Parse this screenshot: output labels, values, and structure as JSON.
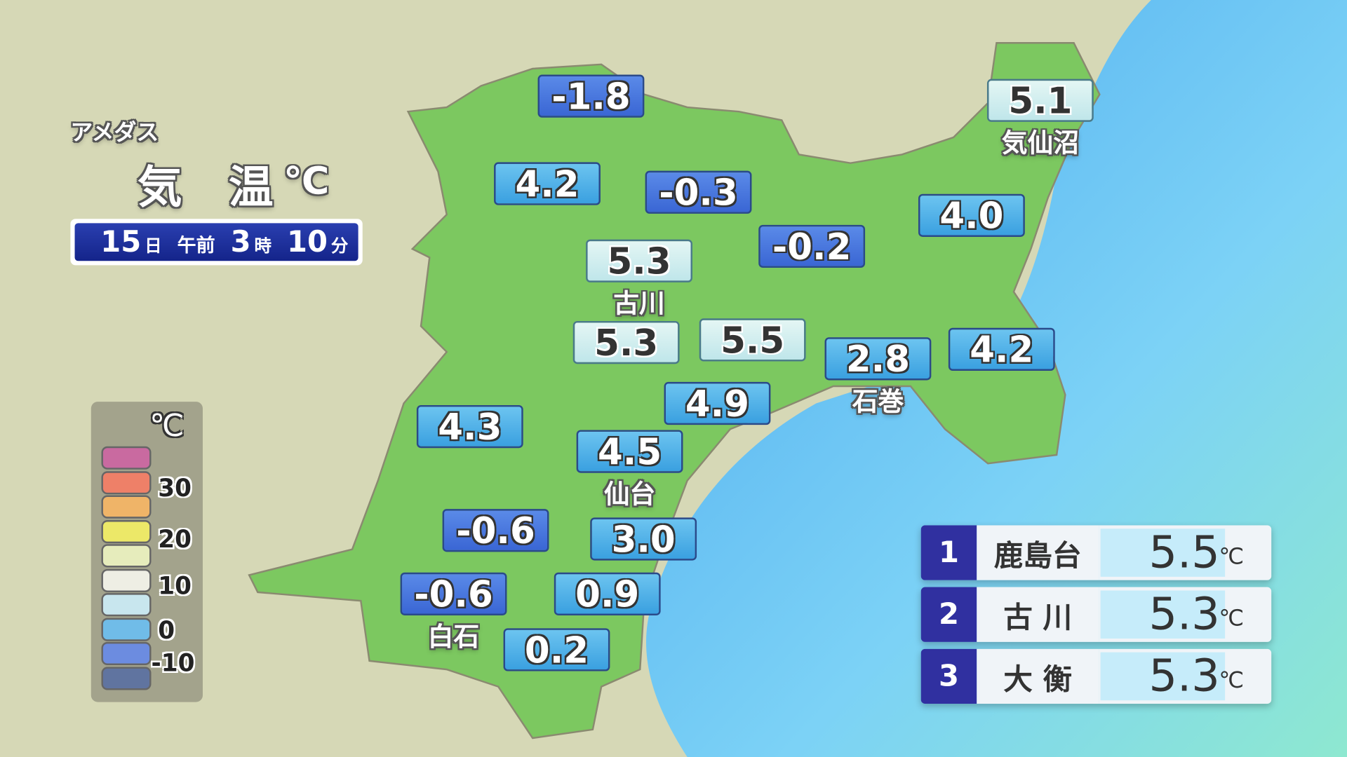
{
  "header": {
    "source": "アメダス",
    "title": "気 温",
    "unit": "℃"
  },
  "time": {
    "day": "15",
    "day_unit": "日",
    "ampm": "午前",
    "hour": "3",
    "hour_unit": "時",
    "minute": "10",
    "minute_unit": "分"
  },
  "legend": {
    "unit": "℃",
    "ticks": [
      "30",
      "20",
      "10",
      "0",
      "-10"
    ],
    "colors": [
      "#c96aa0",
      "#ee8068",
      "#efb468",
      "#ece868",
      "#e6ecbc",
      "#eeeee4",
      "#c8e6ee",
      "#70bce8",
      "#6c8ce0",
      "#6074a0"
    ]
  },
  "colors": {
    "land": "#7cc860",
    "sea": "#7ccff5",
    "neg": "#3f6fd8",
    "mid": "#4aaee6",
    "hi": "#cdeef0",
    "rank": "#3030a0"
  },
  "stations": [
    {
      "value": "-1.8",
      "name": ""
    },
    {
      "value": "5.1",
      "name": "気仙沼"
    },
    {
      "value": "4.2",
      "name": ""
    },
    {
      "value": "-0.3",
      "name": ""
    },
    {
      "value": "4.0",
      "name": ""
    },
    {
      "value": "-0.2",
      "name": ""
    },
    {
      "value": "5.3",
      "name": "古川"
    },
    {
      "value": "5.3",
      "name": ""
    },
    {
      "value": "5.5",
      "name": ""
    },
    {
      "value": "2.8",
      "name": "石巻"
    },
    {
      "value": "4.2",
      "name": ""
    },
    {
      "value": "4.9",
      "name": ""
    },
    {
      "value": "4.3",
      "name": ""
    },
    {
      "value": "4.5",
      "name": "仙台"
    },
    {
      "value": "-0.6",
      "name": ""
    },
    {
      "value": "3.0",
      "name": ""
    },
    {
      "value": "-0.6",
      "name": "白石"
    },
    {
      "value": "0.9",
      "name": ""
    },
    {
      "value": "0.2",
      "name": ""
    }
  ],
  "ranking": [
    {
      "rank": "1",
      "name": "鹿島台",
      "value": "5.5",
      "unit": "℃"
    },
    {
      "rank": "2",
      "name": "古 川",
      "value": "5.3",
      "unit": "℃"
    },
    {
      "rank": "3",
      "name": "大 衡",
      "value": "5.3",
      "unit": "℃"
    }
  ]
}
